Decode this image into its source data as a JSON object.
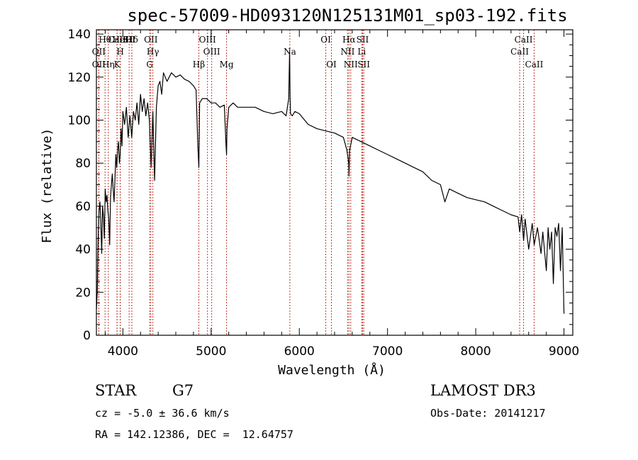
{
  "chart_data": {
    "type": "line",
    "title": "spec-57009-HD093120N125131M01_sp03-192.fits",
    "xlabel": "Wavelength (Å)",
    "ylabel": "Flux (relative)",
    "xlim": [
      3700,
      9100
    ],
    "ylim": [
      0,
      142
    ],
    "x_ticks": [
      4000,
      5000,
      6000,
      7000,
      8000,
      9000
    ],
    "y_ticks": [
      0,
      20,
      40,
      60,
      80,
      100,
      120,
      140
    ],
    "series": [
      {
        "name": "flux",
        "color": "#000000",
        "x": [
          3700,
          3710,
          3720,
          3730,
          3740,
          3750,
          3760,
          3770,
          3780,
          3790,
          3800,
          3810,
          3820,
          3830,
          3840,
          3850,
          3860,
          3870,
          3880,
          3890,
          3900,
          3910,
          3920,
          3930,
          3940,
          3950,
          3960,
          3970,
          3980,
          3990,
          4000,
          4020,
          4040,
          4060,
          4080,
          4100,
          4120,
          4140,
          4160,
          4180,
          4200,
          4220,
          4240,
          4260,
          4280,
          4300,
          4320,
          4340,
          4360,
          4380,
          4400,
          4420,
          4440,
          4460,
          4480,
          4500,
          4550,
          4600,
          4650,
          4700,
          4750,
          4800,
          4830,
          4850,
          4861,
          4870,
          4900,
          4950,
          5000,
          5050,
          5100,
          5150,
          5170,
          5175,
          5180,
          5200,
          5250,
          5300,
          5400,
          5500,
          5600,
          5700,
          5800,
          5850,
          5880,
          5890,
          5896,
          5900,
          5920,
          5950,
          6000,
          6100,
          6200,
          6300,
          6400,
          6500,
          6540,
          6560,
          6563,
          6570,
          6600,
          6700,
          6800,
          6900,
          7000,
          7100,
          7200,
          7300,
          7400,
          7500,
          7600,
          7650,
          7700,
          7800,
          7900,
          8000,
          8100,
          8200,
          8300,
          8400,
          8480,
          8498,
          8520,
          8542,
          8560,
          8600,
          8640,
          8662,
          8700,
          8740,
          8760,
          8800,
          8820,
          8840,
          8860,
          8880,
          8900,
          8920,
          8940,
          8960,
          8980,
          9000
        ],
        "y": [
          12,
          20,
          45,
          58,
          62,
          52,
          38,
          60,
          55,
          45,
          68,
          62,
          65,
          58,
          54,
          42,
          64,
          70,
          75,
          68,
          62,
          72,
          84,
          78,
          86,
          90,
          80,
          84,
          96,
          88,
          104,
          98,
          106,
          92,
          102,
          92,
          104,
          100,
          108,
          98,
          112,
          104,
          110,
          102,
          108,
          100,
          78,
          104,
          72,
          106,
          116,
          118,
          112,
          122,
          120,
          118,
          122,
          120,
          121,
          119,
          118,
          116,
          114,
          88,
          78,
          108,
          110,
          110,
          108,
          108,
          106,
          107,
          88,
          84,
          96,
          106,
          108,
          106,
          106,
          106,
          104,
          103,
          104,
          102,
          110,
          132,
          110,
          103,
          102,
          104,
          103,
          98,
          96,
          95,
          94,
          92,
          86,
          80,
          74,
          86,
          92,
          90,
          88,
          86,
          84,
          82,
          80,
          78,
          76,
          72,
          70,
          62,
          68,
          66,
          64,
          63,
          62,
          60,
          58,
          56,
          55,
          48,
          56,
          44,
          54,
          40,
          52,
          42,
          50,
          38,
          48,
          30,
          50,
          40,
          48,
          24,
          50,
          46,
          52,
          30,
          50,
          10
        ]
      }
    ],
    "spectral_lines": [
      {
        "label": "Hθ",
        "x": 3798,
        "row": 1
      },
      {
        "label": "CaII",
        "x": 3934,
        "row": 1
      },
      {
        "label": "HeI",
        "x": 3970,
        "row": 1
      },
      {
        "label": "SII",
        "x": 4071,
        "row": 1
      },
      {
        "label": "Hδ",
        "x": 4102,
        "row": 1
      },
      {
        "label": "OII",
        "x": 4317,
        "row": 1
      },
      {
        "label": "OIII",
        "x": 4959,
        "row": 1
      },
      {
        "label": "OI",
        "x": 6300,
        "row": 1
      },
      {
        "label": "Hα",
        "x": 6563,
        "row": 1
      },
      {
        "label": "SII",
        "x": 6717,
        "row": 1
      },
      {
        "label": "CaII",
        "x": 8542,
        "row": 1
      },
      {
        "label": "OII",
        "x": 3727,
        "row": 2
      },
      {
        "label": "H",
        "x": 3970,
        "row": 2
      },
      {
        "label": "Hγ",
        "x": 4340,
        "row": 2
      },
      {
        "label": "OIII",
        "x": 5007,
        "row": 2
      },
      {
        "label": "Na",
        "x": 5893,
        "row": 2
      },
      {
        "label": "NII",
        "x": 6548,
        "row": 2
      },
      {
        "label": "Li",
        "x": 6708,
        "row": 2
      },
      {
        "label": "CaII",
        "x": 8498,
        "row": 2
      },
      {
        "label": "OII",
        "x": 3727,
        "row": 3
      },
      {
        "label": "Hη",
        "x": 3835,
        "row": 3
      },
      {
        "label": "K",
        "x": 3934,
        "row": 3
      },
      {
        "label": "G",
        "x": 4304,
        "row": 3
      },
      {
        "label": "Hβ",
        "x": 4861,
        "row": 3
      },
      {
        "label": "Mg",
        "x": 5175,
        "row": 3
      },
      {
        "label": "OI",
        "x": 6364,
        "row": 3
      },
      {
        "label": "NII",
        "x": 6583,
        "row": 3
      },
      {
        "label": "SII",
        "x": 6731,
        "row": 3
      },
      {
        "label": "CaII",
        "x": 8662,
        "row": 3
      }
    ]
  },
  "info": {
    "object_class": "STAR",
    "subclass": "G7",
    "survey": "LAMOST DR3",
    "redshift_line": "cz = -5.0 ± 36.6 km/s",
    "obs_date_line": "Obs-Date: 20141217",
    "coords_line": "RA = 142.12386, DEC =  12.64757"
  }
}
